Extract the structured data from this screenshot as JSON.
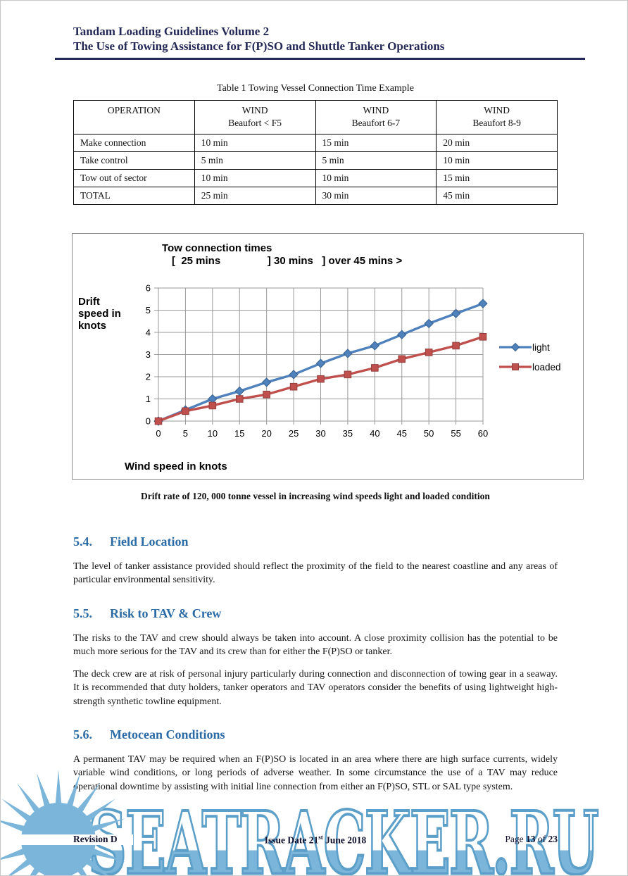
{
  "header": {
    "line1": "Tandam Loading Guidelines Volume 2",
    "line2": "The Use of Towing Assistance for F(P)SO and Shuttle Tanker Operations"
  },
  "table": {
    "caption": "Table 1 Towing Vessel Connection Time Example",
    "columns": [
      {
        "line1": "OPERATION",
        "line2": ""
      },
      {
        "line1": "WIND",
        "line2": "Beaufort < F5"
      },
      {
        "line1": "WIND",
        "line2": "Beaufort 6-7"
      },
      {
        "line1": "WIND",
        "line2": "Beaufort 8-9"
      }
    ],
    "rows": [
      [
        "Make connection",
        "10 min",
        "15 min",
        "20 min"
      ],
      [
        "Take control",
        "5 min",
        "5 min",
        "10 min"
      ],
      [
        "Tow out of sector",
        "10 min",
        "10 min",
        "15 min"
      ],
      [
        "TOTAL",
        "25 min",
        "30 min",
        "45 min"
      ]
    ]
  },
  "chart_data": {
    "type": "line",
    "title": "Tow connection times",
    "subtitle": "[  25 mins                ] 30 mins   ] over 45 mins >",
    "ylabel": "Drift speed in knots",
    "xlabel": "Wind speed in knots",
    "x": [
      0,
      5,
      10,
      15,
      20,
      25,
      30,
      35,
      40,
      45,
      50,
      55,
      60
    ],
    "yticks": [
      0,
      1,
      2,
      3,
      4,
      5,
      6
    ],
    "xlim": [
      0,
      60
    ],
    "ylim": [
      0,
      6
    ],
    "grid": true,
    "legend_position": "right",
    "series": [
      {
        "name": "light",
        "color": "#4F81BD",
        "edge": "#36618e",
        "marker": "diamond",
        "values": [
          0,
          0.5,
          1.0,
          1.35,
          1.75,
          2.1,
          2.6,
          3.05,
          3.4,
          3.9,
          4.4,
          4.85,
          5.3
        ]
      },
      {
        "name": "loaded",
        "color": "#C0504D",
        "edge": "#943f3d",
        "marker": "square",
        "values": [
          0,
          0.45,
          0.7,
          1.0,
          1.2,
          1.55,
          1.9,
          2.1,
          2.4,
          2.8,
          3.1,
          3.4,
          3.8
        ]
      }
    ]
  },
  "chart_caption": "Drift rate of 120, 000 tonne vessel in increasing wind speeds light and loaded condition",
  "sections": [
    {
      "number": "5.4.",
      "title": "Field Location",
      "paragraphs": [
        "The level of tanker assistance provided should reflect the proximity of the field to the nearest coastline and any areas of particular environmental sensitivity."
      ]
    },
    {
      "number": "5.5.",
      "title": "Risk to TAV & Crew",
      "paragraphs": [
        "The risks to the TAV and crew should always be taken into account. A close proximity collision has the potential to be much more serious for the TAV and its crew than for either the F(P)SO or tanker.",
        "The deck crew are at risk of personal injury particularly during connection and disconnection of towing gear in a seaway.  It is recommended that duty holders, tanker operators and TAV operators consider the benefits of using lightweight high-strength synthetic towline equipment."
      ]
    },
    {
      "number": "5.6.",
      "title": "Metocean Conditions",
      "paragraphs": [
        "A permanent TAV may be required when an F(P)SO is located in an area where there are high  surface currents,  widely  variable  wind  conditions, or  long  periods  of  adverse weather.  In some circumstance the use of a TAV may reduce operational downtime by assisting with initial line connection from either an F(P)SO, STL or SAL type system."
      ]
    }
  ],
  "footer": {
    "revision": "Revision D",
    "issue_pre": "Issue Date 21",
    "issue_sup": "st",
    "issue_post": " June 2018",
    "page_pre": "Page ",
    "page_num": "13",
    "page_mid": " of ",
    "page_total": "23"
  },
  "watermark": {
    "text": "SEATRACKER.RU",
    "fill_color": "#7cb5da",
    "outline_color": "#5c9fc9",
    "logo": "sun"
  },
  "colors": {
    "header_navy": "#232856",
    "heading_blue": "#2b6ba6",
    "series_light": "#4F81BD",
    "series_loaded": "#C0504D"
  }
}
